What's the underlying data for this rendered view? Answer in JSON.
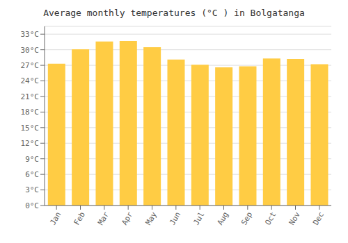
{
  "chart_data": {
    "type": "bar",
    "title": "Average monthly temperatures (°C ) in Bolgatanga",
    "categories": [
      "Jan",
      "Feb",
      "Mar",
      "Apr",
      "May",
      "Jun",
      "Jul",
      "Aug",
      "Sep",
      "Oct",
      "Nov",
      "Dec"
    ],
    "values": [
      27.3,
      30.1,
      31.6,
      31.7,
      30.5,
      28.1,
      27.1,
      26.6,
      26.8,
      28.3,
      28.2,
      27.2
    ],
    "color": "#FFCC44",
    "ylim": [
      0,
      34.5
    ],
    "yticks": [
      {
        "value": 0,
        "label": "0°C"
      },
      {
        "value": 3,
        "label": "3°C"
      },
      {
        "value": 6,
        "label": "6°C"
      },
      {
        "value": 9,
        "label": "9°C"
      },
      {
        "value": 12,
        "label": "12°C"
      },
      {
        "value": 15,
        "label": "15°C"
      },
      {
        "value": 18,
        "label": "18°C"
      },
      {
        "value": 21,
        "label": "21°C"
      },
      {
        "value": 24,
        "label": "24°C"
      },
      {
        "value": 27,
        "label": "27°C"
      },
      {
        "value": 30,
        "label": "30°C"
      },
      {
        "value": 33,
        "label": "33°C"
      }
    ],
    "grid": true
  }
}
